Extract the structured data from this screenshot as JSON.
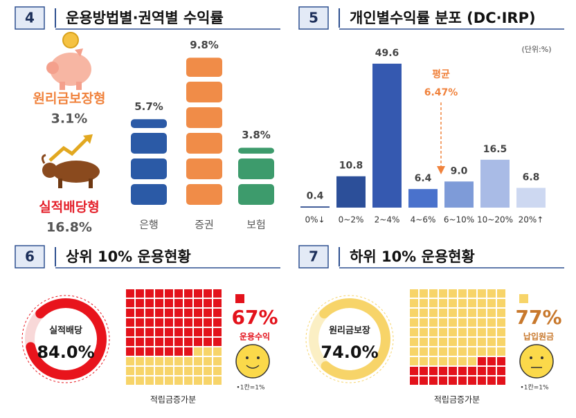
{
  "chart_data": [
    {
      "type": "bar",
      "badge": "4",
      "title": "운용방법별·권역별 수익률",
      "categories": [
        "은행",
        "증권",
        "보험"
      ],
      "values": [
        5.7,
        9.8,
        3.8
      ],
      "value_labels": [
        "5.7%",
        "9.8%",
        "3.8%"
      ],
      "colors": [
        "#2b5aa6",
        "#f08c48",
        "#3d9b6c"
      ],
      "annotations": [
        {
          "label": "원리금보장형",
          "text": "3.1%",
          "color": "#f0823c"
        },
        {
          "label": "실적배당형",
          "text": "16.8%",
          "color": "#e4202a"
        }
      ]
    },
    {
      "type": "bar",
      "badge": "5",
      "title": "개인별수익률 분포 (DC·IRP)",
      "unit": "(단위:%)",
      "categories": [
        "0%↓",
        "0~2%",
        "2~4%",
        "4~6%",
        "6~10%",
        "10~20%",
        "20%↑"
      ],
      "values": [
        0.4,
        10.8,
        49.6,
        6.4,
        9.0,
        16.5,
        6.8
      ],
      "value_labels": [
        "0.4",
        "10.8",
        "49.6",
        "6.4",
        "9.0",
        "16.5",
        "6.8"
      ],
      "colors": [
        "#1f3f86",
        "#2c4f99",
        "#3559b0",
        "#4a72cc",
        "#7e9bd8",
        "#a9bbe6",
        "#cdd8f1"
      ],
      "average": {
        "label": "평균",
        "value": 6.47,
        "value_label": "6.47%",
        "color": "#f0823c"
      }
    },
    {
      "type": "waffle",
      "badge": "6",
      "title": "상위 10% 운용현황",
      "donut": {
        "label": "실적배당",
        "value": 84.0,
        "value_label": "84.0%",
        "color": "#e8141c",
        "track": "#f8d8d8"
      },
      "waffle": {
        "value": 67,
        "value_label": "67%",
        "label": "운용수익",
        "color": "#e3121b",
        "other_color": "#f7d469",
        "text_color": "#e3121b"
      },
      "face": "smile",
      "note": "•1칸=1%",
      "caption": "적립금증가분"
    },
    {
      "type": "waffle",
      "badge": "7",
      "title": "하위 10% 운용현황",
      "donut": {
        "label": "원리금보장",
        "value": 74.0,
        "value_label": "74.0%",
        "color": "#f7d469",
        "track": "#fbefc4"
      },
      "waffle": {
        "value": 77,
        "value_label": "77%",
        "label": "납입원금",
        "color": "#f7d469",
        "other_color": "#e3121b",
        "text_color": "#c8782c"
      },
      "face": "neutral",
      "note": "•1칸=1%",
      "caption": "적립금증가분"
    }
  ]
}
